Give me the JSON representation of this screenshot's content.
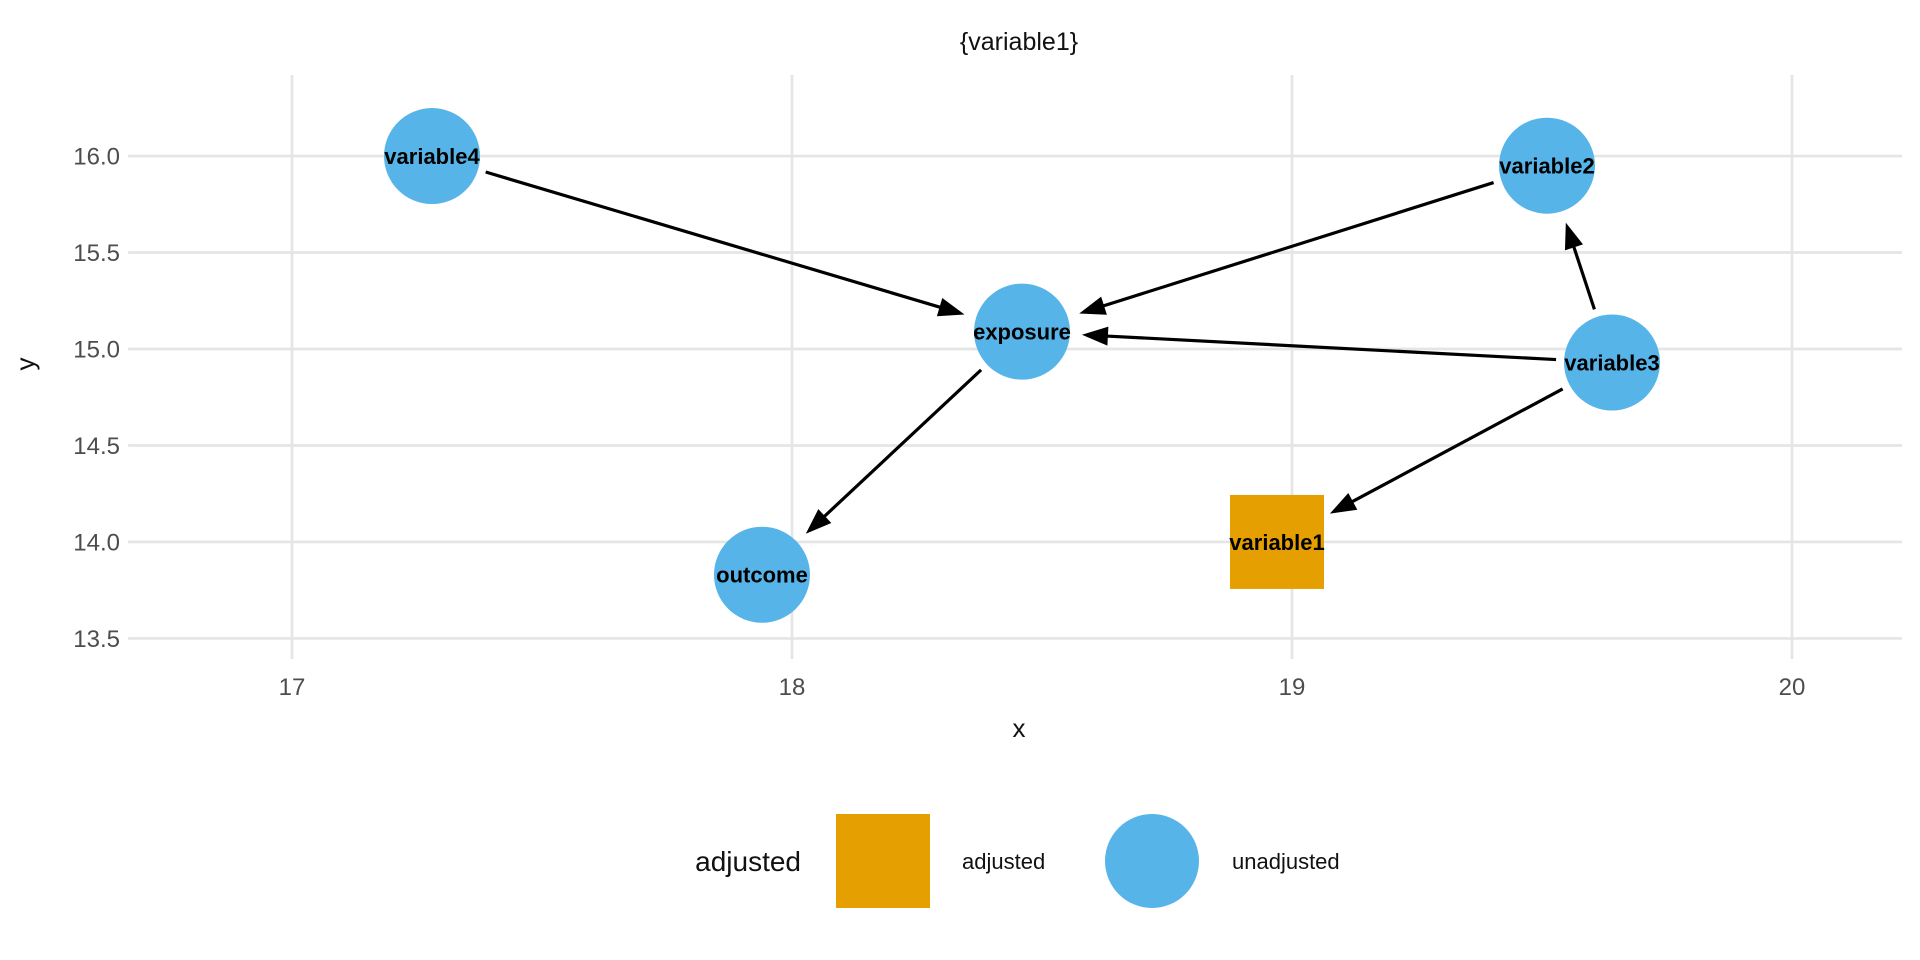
{
  "title": "{variable1}",
  "chart_data": {
    "type": "scatter",
    "subtype": "dag",
    "title": "{variable1}",
    "xlabel": "x",
    "ylabel": "y",
    "xlim": [
      16.69,
      20.22
    ],
    "ylim": [
      13.44,
      16.42
    ],
    "x_ticks": [
      {
        "value": 17,
        "label": "17"
      },
      {
        "value": 18,
        "label": "18"
      },
      {
        "value": 19,
        "label": "19"
      },
      {
        "value": 20,
        "label": "20"
      }
    ],
    "y_ticks": [
      {
        "value": 13.5,
        "label": "13.5"
      },
      {
        "value": 14.0,
        "label": "14.0"
      },
      {
        "value": 14.5,
        "label": "14.5"
      },
      {
        "value": 15.0,
        "label": "15.0"
      },
      {
        "value": 15.5,
        "label": "15.5"
      },
      {
        "value": 16.0,
        "label": "16.0"
      }
    ],
    "grid": "major-only",
    "legend_position": "bottom",
    "nodes": [
      {
        "id": "variable4",
        "label": "variable4",
        "x": 17.28,
        "y": 16.0,
        "shape": "circle",
        "status": "unadjusted"
      },
      {
        "id": "exposure",
        "label": "exposure",
        "x": 18.46,
        "y": 15.09,
        "shape": "circle",
        "status": "unadjusted"
      },
      {
        "id": "variable2",
        "label": "variable2",
        "x": 19.51,
        "y": 15.95,
        "shape": "circle",
        "status": "unadjusted"
      },
      {
        "id": "variable3",
        "label": "variable3",
        "x": 19.64,
        "y": 14.93,
        "shape": "circle",
        "status": "unadjusted"
      },
      {
        "id": "outcome",
        "label": "outcome",
        "x": 17.94,
        "y": 13.83,
        "shape": "circle",
        "status": "unadjusted"
      },
      {
        "id": "variable1",
        "label": "variable1",
        "x": 18.97,
        "y": 14.0,
        "shape": "square",
        "status": "adjusted"
      }
    ],
    "edges": [
      {
        "from": "variable4",
        "to": "exposure"
      },
      {
        "from": "variable2",
        "to": "exposure"
      },
      {
        "from": "variable3",
        "to": "exposure"
      },
      {
        "from": "variable3",
        "to": "variable2"
      },
      {
        "from": "variable3",
        "to": "variable1"
      },
      {
        "from": "exposure",
        "to": "outcome"
      }
    ]
  },
  "legend": {
    "title": "adjusted",
    "items": [
      {
        "label": "adjusted",
        "shape": "square",
        "color": "#E69F00"
      },
      {
        "label": "unadjusted",
        "shape": "circle",
        "color": "#56B4E9"
      }
    ]
  },
  "colors": {
    "adjusted": "#E69F00",
    "unadjusted": "#56B4E9",
    "grid": "#E5E5E5",
    "tick_label": "#4D4D4D",
    "edge": "#000000",
    "node_label": "#000000"
  }
}
